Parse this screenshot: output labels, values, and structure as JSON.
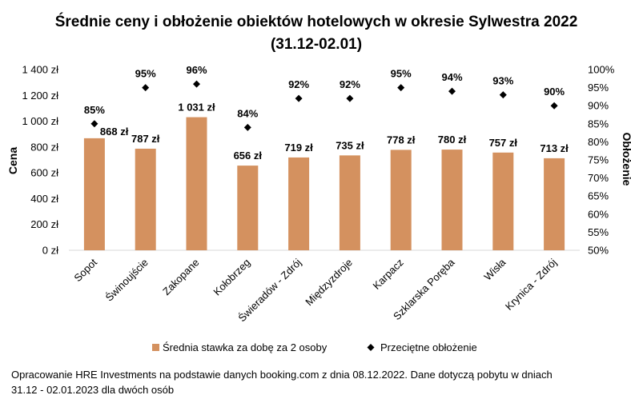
{
  "chart_data": {
    "type": "bar",
    "title_line1": "Średnie ceny i obłożenie obiektów hotelowych w okresie Sylwestra 2022",
    "title_line2": "(31.12-02.01)",
    "ylabel": "Cena",
    "y2label": "Obłożenie",
    "ylim": [
      0,
      1400
    ],
    "y2lim": [
      0.5,
      1.0
    ],
    "y_ticks": [
      "0 zł",
      "200 zł",
      "400 zł",
      "600 zł",
      "800 zł",
      "1 000 zł",
      "1 200 zł",
      "1 400 zł"
    ],
    "y2_ticks": [
      "50%",
      "55%",
      "60%",
      "65%",
      "70%",
      "75%",
      "80%",
      "85%",
      "90%",
      "95%",
      "100%"
    ],
    "categories": [
      "Sopot",
      "Świnoujście",
      "Zakopane",
      "Kołobrzeg",
      "Świeradów - Zdrój",
      "Międzyzdroje",
      "Karpacz",
      "Szklarska Poręba",
      "Wisła",
      "Krynica - Zdrój"
    ],
    "series": [
      {
        "name": "Średnia stawka za dobę za 2 osoby",
        "type": "bar",
        "axis": "left",
        "color": "#d4915f",
        "values": [
          868,
          787,
          1031,
          656,
          719,
          735,
          778,
          780,
          757,
          713
        ],
        "labels": [
          "868 zł",
          "787 zł",
          "1 031 zł",
          "656 zł",
          "719 zł",
          "735 zł",
          "778 zł",
          "780 zł",
          "757 zł",
          "713 zł"
        ]
      },
      {
        "name": "Przeciętne obłożenie",
        "type": "scatter",
        "axis": "right",
        "color": "#000000",
        "values": [
          0.85,
          0.95,
          0.96,
          0.84,
          0.92,
          0.92,
          0.95,
          0.94,
          0.93,
          0.9
        ],
        "labels": [
          "85%",
          "95%",
          "96%",
          "84%",
          "92%",
          "92%",
          "95%",
          "94%",
          "93%",
          "90%"
        ]
      }
    ],
    "legend_position": "bottom",
    "grid": false
  },
  "footer": {
    "line1": "Opracowanie HRE Investments na podstawie danych booking.com z dnia 08.12.2022. Dane dotyczą pobytu w dniach",
    "line2": "31.12 - 02.01.2023 dla dwóch osób"
  }
}
